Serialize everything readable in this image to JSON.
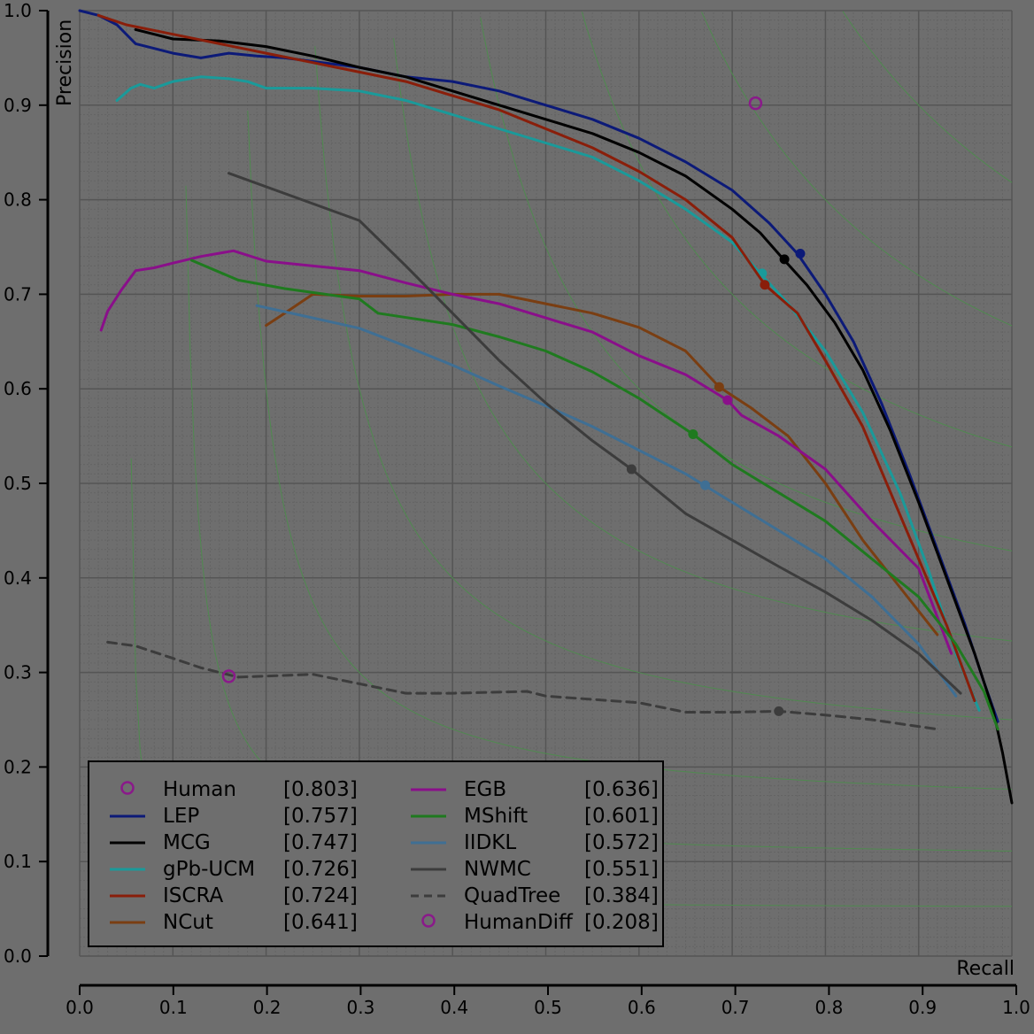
{
  "chart_data": {
    "type": "line",
    "title": "",
    "xlabel": "Recall",
    "ylabel": "Precision",
    "xlim": [
      0.0,
      1.0
    ],
    "ylim": [
      0.0,
      1.0
    ],
    "grid": true,
    "legend_position": "bottom-left",
    "x_ticks": [
      "0.0",
      "0.1",
      "0.2",
      "0.3",
      "0.4",
      "0.5",
      "0.6",
      "0.7",
      "0.8",
      "0.9",
      "1.0"
    ],
    "y_ticks": [
      "0.0",
      "0.1",
      "0.2",
      "0.3",
      "0.4",
      "0.5",
      "0.6",
      "0.7",
      "0.8",
      "0.9",
      "1.0"
    ],
    "iso_f_levels": [
      0.1,
      0.2,
      0.3,
      0.4,
      0.5,
      0.6,
      0.7,
      0.8,
      0.9
    ],
    "colors": {
      "background": "#6e6e6e",
      "grid": "#555555",
      "minor_grid": "#646464",
      "iso_f": "#4f8a4f"
    },
    "series": [
      {
        "name": "Human",
        "score": "[0.803]",
        "kind": "marker",
        "color": "#8a1a8a",
        "points": [
          [
            0.725,
            0.902
          ]
        ]
      },
      {
        "name": "LEP",
        "score": "[0.757]",
        "kind": "line",
        "color": "#0c1a78",
        "points": [
          [
            0.0,
            1.0
          ],
          [
            0.02,
            0.995
          ],
          [
            0.04,
            0.985
          ],
          [
            0.06,
            0.965
          ],
          [
            0.08,
            0.96
          ],
          [
            0.1,
            0.955
          ],
          [
            0.13,
            0.95
          ],
          [
            0.16,
            0.955
          ],
          [
            0.19,
            0.952
          ],
          [
            0.22,
            0.95
          ],
          [
            0.26,
            0.945
          ],
          [
            0.3,
            0.94
          ],
          [
            0.35,
            0.93
          ],
          [
            0.4,
            0.925
          ],
          [
            0.45,
            0.915
          ],
          [
            0.5,
            0.9
          ],
          [
            0.55,
            0.885
          ],
          [
            0.6,
            0.865
          ],
          [
            0.65,
            0.84
          ],
          [
            0.7,
            0.81
          ],
          [
            0.74,
            0.775
          ],
          [
            0.77,
            0.743
          ],
          [
            0.8,
            0.7
          ],
          [
            0.83,
            0.65
          ],
          [
            0.86,
            0.585
          ],
          [
            0.89,
            0.51
          ],
          [
            0.92,
            0.43
          ],
          [
            0.95,
            0.35
          ],
          [
            0.97,
            0.29
          ],
          [
            0.985,
            0.248
          ]
        ],
        "operating_point": [
          0.773,
          0.743
        ]
      },
      {
        "name": "MCG",
        "score": "[0.747]",
        "kind": "line",
        "color": "#000000",
        "points": [
          [
            0.06,
            0.98
          ],
          [
            0.08,
            0.975
          ],
          [
            0.1,
            0.97
          ],
          [
            0.15,
            0.968
          ],
          [
            0.2,
            0.962
          ],
          [
            0.25,
            0.952
          ],
          [
            0.3,
            0.94
          ],
          [
            0.35,
            0.93
          ],
          [
            0.4,
            0.915
          ],
          [
            0.45,
            0.9
          ],
          [
            0.5,
            0.885
          ],
          [
            0.55,
            0.87
          ],
          [
            0.6,
            0.85
          ],
          [
            0.65,
            0.825
          ],
          [
            0.7,
            0.79
          ],
          [
            0.73,
            0.765
          ],
          [
            0.755,
            0.737
          ],
          [
            0.78,
            0.71
          ],
          [
            0.81,
            0.67
          ],
          [
            0.84,
            0.62
          ],
          [
            0.87,
            0.555
          ],
          [
            0.9,
            0.48
          ],
          [
            0.93,
            0.4
          ],
          [
            0.96,
            0.32
          ],
          [
            0.98,
            0.26
          ],
          [
            0.99,
            0.215
          ],
          [
            1.0,
            0.162
          ]
        ],
        "operating_point": [
          0.756,
          0.737
        ]
      },
      {
        "name": "gPb-UCM",
        "score": "[0.726]",
        "kind": "line",
        "color": "#1a9a9a",
        "points": [
          [
            0.04,
            0.905
          ],
          [
            0.055,
            0.918
          ],
          [
            0.065,
            0.922
          ],
          [
            0.08,
            0.918
          ],
          [
            0.1,
            0.925
          ],
          [
            0.13,
            0.93
          ],
          [
            0.16,
            0.928
          ],
          [
            0.18,
            0.925
          ],
          [
            0.2,
            0.918
          ],
          [
            0.25,
            0.918
          ],
          [
            0.3,
            0.915
          ],
          [
            0.35,
            0.905
          ],
          [
            0.4,
            0.89
          ],
          [
            0.45,
            0.875
          ],
          [
            0.5,
            0.86
          ],
          [
            0.55,
            0.845
          ],
          [
            0.6,
            0.82
          ],
          [
            0.65,
            0.79
          ],
          [
            0.7,
            0.755
          ],
          [
            0.73,
            0.722
          ],
          [
            0.76,
            0.69
          ],
          [
            0.8,
            0.64
          ],
          [
            0.84,
            0.575
          ],
          [
            0.88,
            0.49
          ],
          [
            0.91,
            0.41
          ],
          [
            0.94,
            0.32
          ],
          [
            0.965,
            0.26
          ]
        ],
        "operating_point": [
          0.732,
          0.722
        ]
      },
      {
        "name": "ISCRA",
        "score": "[0.724]",
        "kind": "line",
        "color": "#8a1e0a",
        "points": [
          [
            0.02,
            0.995
          ],
          [
            0.05,
            0.985
          ],
          [
            0.1,
            0.975
          ],
          [
            0.15,
            0.965
          ],
          [
            0.2,
            0.955
          ],
          [
            0.25,
            0.945
          ],
          [
            0.3,
            0.935
          ],
          [
            0.35,
            0.925
          ],
          [
            0.4,
            0.91
          ],
          [
            0.45,
            0.895
          ],
          [
            0.5,
            0.875
          ],
          [
            0.55,
            0.855
          ],
          [
            0.6,
            0.83
          ],
          [
            0.65,
            0.8
          ],
          [
            0.7,
            0.76
          ],
          [
            0.735,
            0.71
          ],
          [
            0.77,
            0.68
          ],
          [
            0.8,
            0.63
          ],
          [
            0.84,
            0.56
          ],
          [
            0.87,
            0.49
          ],
          [
            0.9,
            0.42
          ],
          [
            0.93,
            0.35
          ],
          [
            0.96,
            0.27
          ]
        ],
        "operating_point": [
          0.735,
          0.71
        ]
      },
      {
        "name": "NCut",
        "score": "[0.641]",
        "kind": "line",
        "color": "#7a3e12",
        "points": [
          [
            0.2,
            0.667
          ],
          [
            0.22,
            0.68
          ],
          [
            0.25,
            0.7
          ],
          [
            0.3,
            0.698
          ],
          [
            0.35,
            0.698
          ],
          [
            0.4,
            0.7
          ],
          [
            0.45,
            0.7
          ],
          [
            0.5,
            0.69
          ],
          [
            0.55,
            0.68
          ],
          [
            0.6,
            0.665
          ],
          [
            0.65,
            0.64
          ],
          [
            0.686,
            0.602
          ],
          [
            0.72,
            0.58
          ],
          [
            0.76,
            0.55
          ],
          [
            0.8,
            0.5
          ],
          [
            0.84,
            0.44
          ],
          [
            0.88,
            0.39
          ],
          [
            0.92,
            0.34
          ]
        ],
        "operating_point": [
          0.686,
          0.602
        ]
      },
      {
        "name": "EGB",
        "score": "[0.636]",
        "kind": "line",
        "color": "#8a0f8a",
        "points": [
          [
            0.023,
            0.662
          ],
          [
            0.03,
            0.682
          ],
          [
            0.045,
            0.705
          ],
          [
            0.06,
            0.725
          ],
          [
            0.08,
            0.728
          ],
          [
            0.1,
            0.733
          ],
          [
            0.13,
            0.74
          ],
          [
            0.165,
            0.746
          ],
          [
            0.2,
            0.735
          ],
          [
            0.25,
            0.73
          ],
          [
            0.3,
            0.725
          ],
          [
            0.35,
            0.712
          ],
          [
            0.4,
            0.7
          ],
          [
            0.45,
            0.69
          ],
          [
            0.5,
            0.675
          ],
          [
            0.55,
            0.66
          ],
          [
            0.6,
            0.635
          ],
          [
            0.65,
            0.615
          ],
          [
            0.695,
            0.588
          ],
          [
            0.71,
            0.572
          ],
          [
            0.75,
            0.55
          ],
          [
            0.8,
            0.515
          ],
          [
            0.85,
            0.46
          ],
          [
            0.9,
            0.41
          ],
          [
            0.935,
            0.32
          ]
        ],
        "operating_point": [
          0.695,
          0.588
        ]
      },
      {
        "name": "MShift",
        "score": "[0.601]",
        "kind": "line",
        "color": "#1f7a1f",
        "points": [
          [
            0.12,
            0.736
          ],
          [
            0.17,
            0.715
          ],
          [
            0.22,
            0.706
          ],
          [
            0.3,
            0.695
          ],
          [
            0.32,
            0.68
          ],
          [
            0.4,
            0.668
          ],
          [
            0.45,
            0.655
          ],
          [
            0.5,
            0.64
          ],
          [
            0.55,
            0.618
          ],
          [
            0.6,
            0.59
          ],
          [
            0.658,
            0.552
          ],
          [
            0.7,
            0.52
          ],
          [
            0.75,
            0.49
          ],
          [
            0.8,
            0.46
          ],
          [
            0.85,
            0.42
          ],
          [
            0.9,
            0.38
          ],
          [
            0.94,
            0.33
          ],
          [
            0.97,
            0.28
          ],
          [
            0.985,
            0.24
          ]
        ],
        "operating_point": [
          0.658,
          0.552
        ]
      },
      {
        "name": "IIDKL",
        "score": "[0.572]",
        "kind": "line",
        "color": "#3f6f94",
        "points": [
          [
            0.19,
            0.688
          ],
          [
            0.25,
            0.675
          ],
          [
            0.3,
            0.664
          ],
          [
            0.35,
            0.645
          ],
          [
            0.4,
            0.625
          ],
          [
            0.45,
            0.603
          ],
          [
            0.5,
            0.582
          ],
          [
            0.55,
            0.56
          ],
          [
            0.6,
            0.535
          ],
          [
            0.65,
            0.51
          ],
          [
            0.67,
            0.498
          ],
          [
            0.7,
            0.48
          ],
          [
            0.75,
            0.45
          ],
          [
            0.8,
            0.42
          ],
          [
            0.85,
            0.38
          ],
          [
            0.9,
            0.33
          ],
          [
            0.94,
            0.275
          ]
        ],
        "operating_point": [
          0.671,
          0.498
        ]
      },
      {
        "name": "NWMC",
        "score": "[0.551]",
        "kind": "line",
        "color": "#3c3c3c",
        "points": [
          [
            0.16,
            0.828
          ],
          [
            0.3,
            0.778
          ],
          [
            0.35,
            0.73
          ],
          [
            0.4,
            0.68
          ],
          [
            0.45,
            0.63
          ],
          [
            0.5,
            0.585
          ],
          [
            0.55,
            0.545
          ],
          [
            0.592,
            0.515
          ],
          [
            0.65,
            0.468
          ],
          [
            0.7,
            0.44
          ],
          [
            0.75,
            0.412
          ],
          [
            0.8,
            0.385
          ],
          [
            0.85,
            0.355
          ],
          [
            0.9,
            0.32
          ],
          [
            0.945,
            0.278
          ]
        ],
        "operating_point": [
          0.592,
          0.515
        ]
      },
      {
        "name": "QuadTree",
        "score": "[0.384]",
        "kind": "dashed",
        "color": "#3c3c3c",
        "points": [
          [
            0.03,
            0.332
          ],
          [
            0.06,
            0.328
          ],
          [
            0.1,
            0.315
          ],
          [
            0.13,
            0.305
          ],
          [
            0.17,
            0.295
          ],
          [
            0.25,
            0.298
          ],
          [
            0.3,
            0.288
          ],
          [
            0.35,
            0.278
          ],
          [
            0.4,
            0.278
          ],
          [
            0.48,
            0.28
          ],
          [
            0.5,
            0.275
          ],
          [
            0.6,
            0.268
          ],
          [
            0.65,
            0.258
          ],
          [
            0.7,
            0.258
          ],
          [
            0.75,
            0.259
          ],
          [
            0.8,
            0.255
          ],
          [
            0.85,
            0.25
          ],
          [
            0.92,
            0.24
          ]
        ],
        "operating_point": [
          0.75,
          0.259
        ]
      },
      {
        "name": "HumanDiff",
        "score": "[0.208]",
        "kind": "marker",
        "color": "#8a1a8a",
        "points": [
          [
            0.16,
            0.296
          ]
        ]
      }
    ]
  }
}
